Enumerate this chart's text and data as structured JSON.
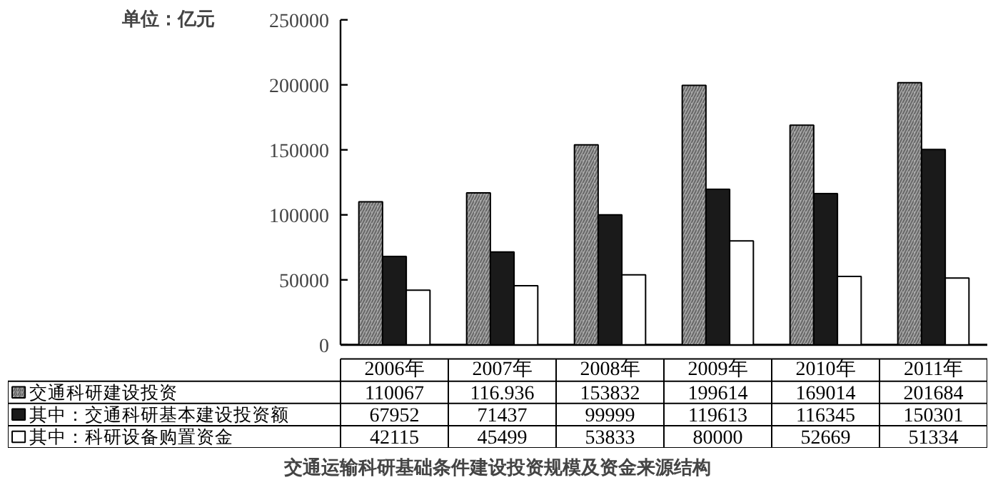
{
  "chart_data": {
    "type": "bar",
    "title": "交通运输科研基础条件建设投资规模及资金来源结构",
    "ylabel": "单位：亿元",
    "categories": [
      "2006年",
      "2007年",
      "2008年",
      "2009年",
      "2010年",
      "2011年"
    ],
    "series": [
      {
        "name": "交通科研建设投资",
        "color": "#a8a8a8",
        "values": [
          110067,
          116936,
          153832,
          199614,
          169014,
          201684
        ],
        "value_labels": [
          "110067",
          "116.936",
          "153832",
          "199614",
          "169014",
          "201684"
        ]
      },
      {
        "name": "其中：交通科研基本建设投资额",
        "color": "#1a1a1a",
        "values": [
          67952,
          71437,
          99999,
          119613,
          116345,
          150301
        ],
        "value_labels": [
          "67952",
          "71437",
          "99999",
          "119613",
          "116345",
          "150301"
        ]
      },
      {
        "name": "其中：科研设备购置资金",
        "color": "#ffffff",
        "values": [
          42115,
          45499,
          53833,
          80000,
          52669,
          51334
        ],
        "value_labels": [
          "42115",
          "45499",
          "53833",
          "80000",
          "52669",
          "51334"
        ]
      }
    ],
    "ylim": [
      0,
      250000
    ],
    "yticks": [
      0,
      50000,
      100000,
      150000,
      200000,
      250000
    ],
    "grid": false,
    "legend": "bottom"
  }
}
